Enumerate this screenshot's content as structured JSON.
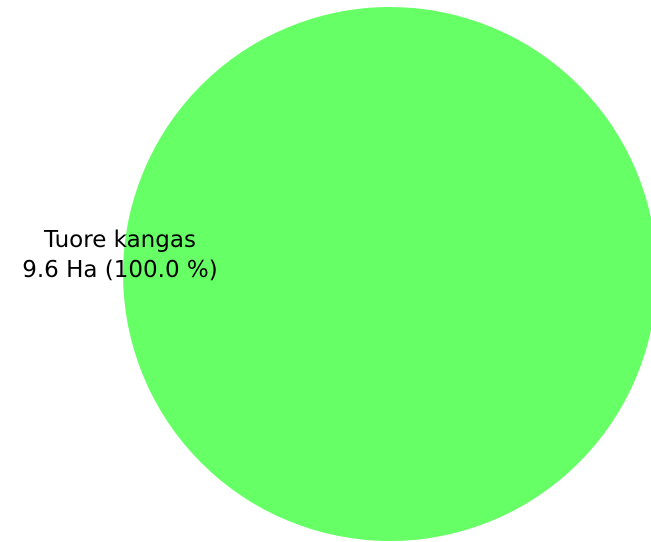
{
  "chart_data": {
    "type": "pie",
    "slices": [
      {
        "label": "Tuore kangas",
        "value": 9.6,
        "value_text": "9.6 Ha (100.0 %)",
        "percent": 100.0,
        "color": "#66ff66"
      }
    ]
  }
}
